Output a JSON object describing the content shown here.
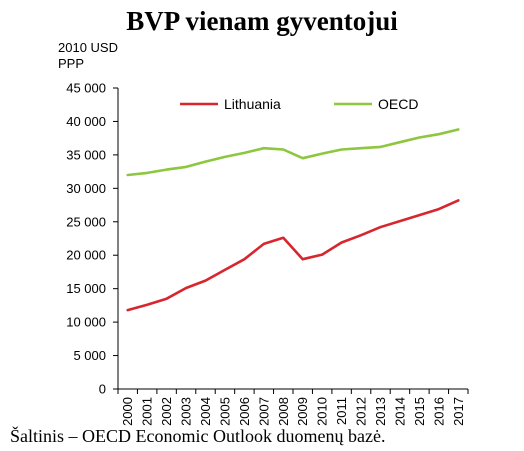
{
  "chart_data": {
    "type": "line",
    "title": "BVP vienam gyventojui",
    "ylabel": "2010 USD PPP",
    "ylabel_lines": [
      "2010 USD",
      "PPP"
    ],
    "xlabel": "",
    "x": [
      "2000",
      "2001",
      "2002",
      "2003",
      "2004",
      "2005",
      "2006",
      "2007",
      "2008",
      "2009",
      "2010",
      "2011",
      "2012",
      "2013",
      "2014",
      "2015",
      "2016",
      "2017"
    ],
    "ylim": [
      0,
      45000
    ],
    "yticks": [
      0,
      5000,
      10000,
      15000,
      20000,
      25000,
      30000,
      35000,
      40000,
      45000
    ],
    "ytick_labels": [
      "0",
      "5 000",
      "10 000",
      "15 000",
      "20 000",
      "25 000",
      "30 000",
      "35 000",
      "40 000",
      "45 000"
    ],
    "grid": false,
    "legend_position": "top",
    "series": [
      {
        "name": "Lithuania",
        "color": "#d7262e",
        "values": [
          11800,
          12600,
          13500,
          15100,
          16200,
          17800,
          19400,
          21700,
          22600,
          19400,
          20100,
          21900,
          23000,
          24200,
          25100,
          26000,
          26900,
          28200
        ]
      },
      {
        "name": "OECD",
        "color": "#8dc63f",
        "values": [
          32000,
          32300,
          32800,
          33200,
          34000,
          34700,
          35300,
          36000,
          35800,
          34500,
          35200,
          35800,
          36000,
          36200,
          36900,
          37600,
          38100,
          38800
        ]
      }
    ]
  },
  "source_note": "Šaltinis – OECD Economic Outlook duomenų bazė."
}
